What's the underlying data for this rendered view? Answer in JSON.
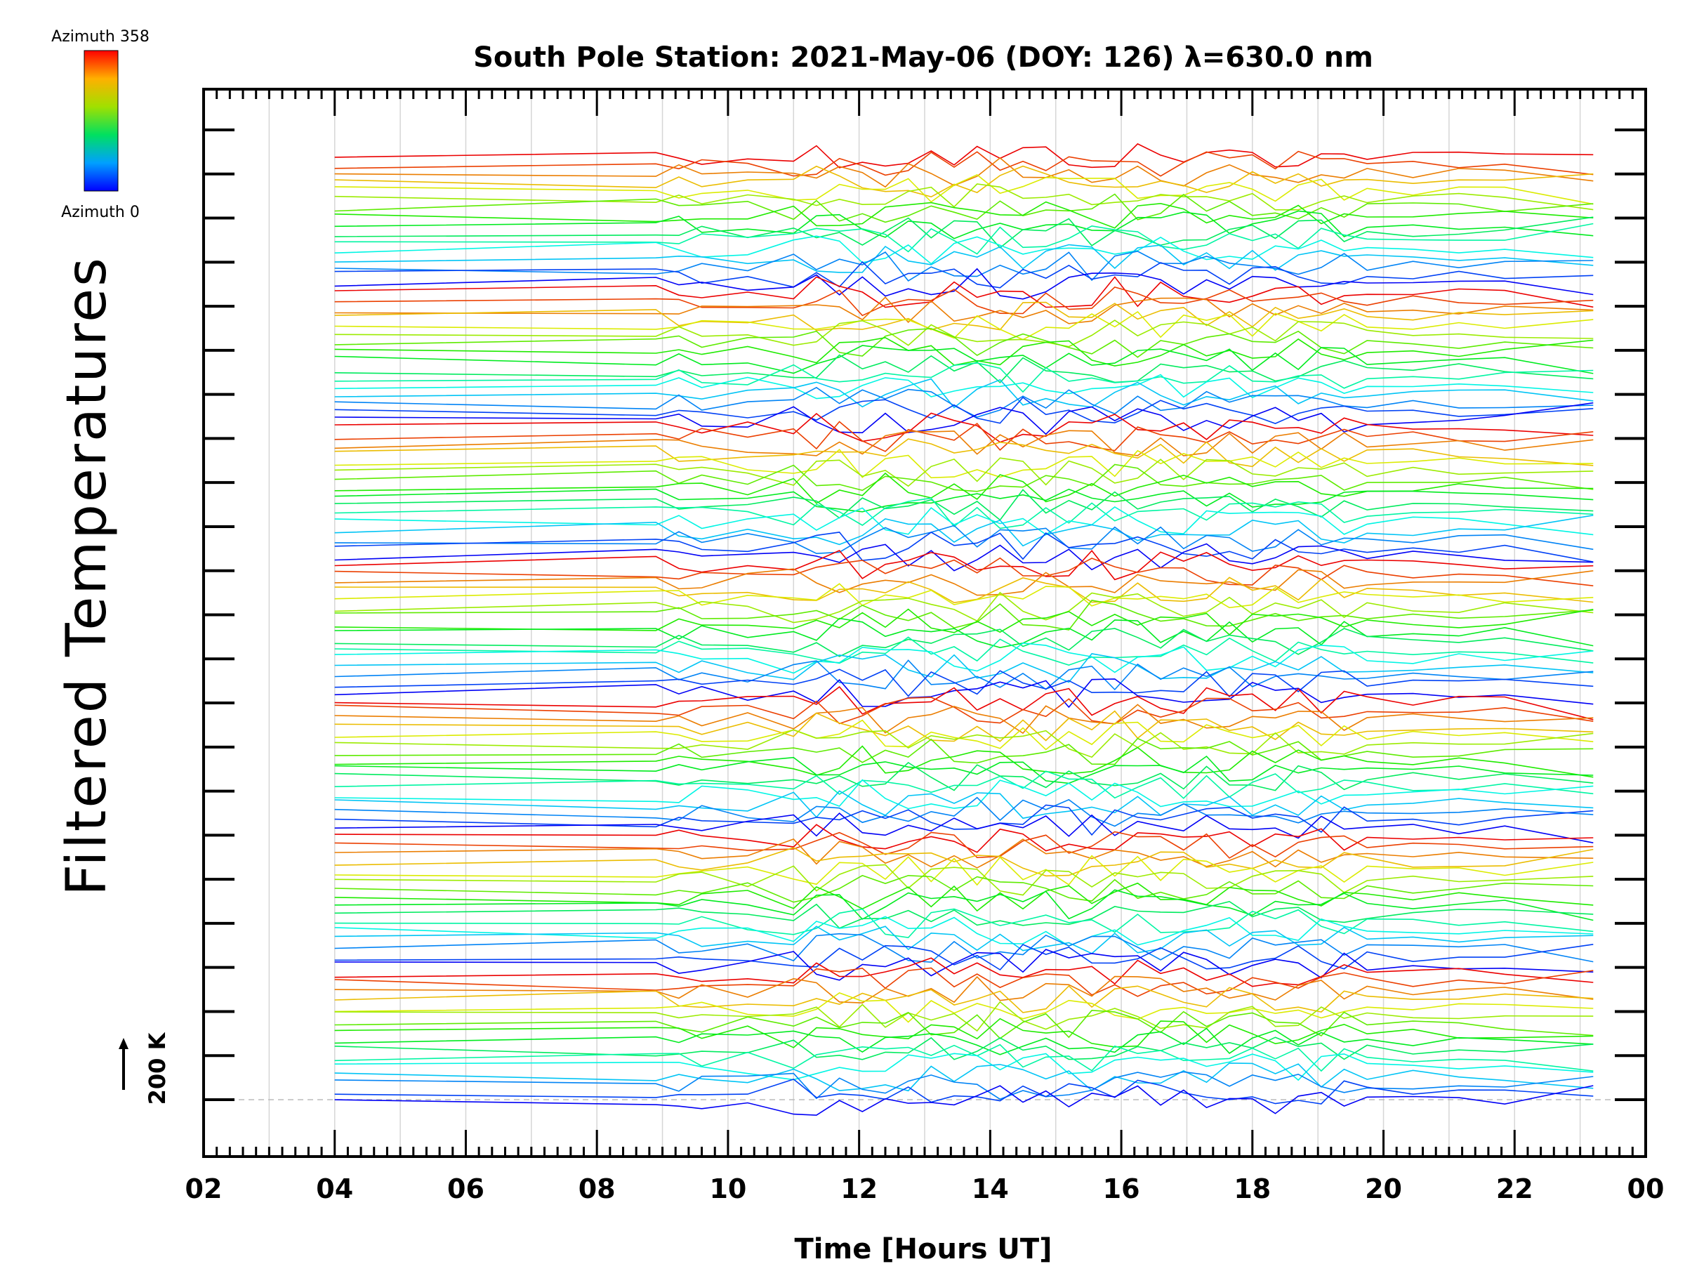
{
  "chart_data": {
    "type": "line",
    "title": "South Pole Station: 2021-May-06 (DOY: 126) λ=630.0 nm",
    "xlabel": "Time [Hours UT]",
    "ylabel": "Filtered Temperatures",
    "xlim": [
      2,
      24
    ],
    "x_tick_labels": [
      "02",
      "04",
      "06",
      "08",
      "10",
      "12",
      "14",
      "16",
      "18",
      "20",
      "22",
      "00"
    ],
    "grid": "vertical hourly lines",
    "scale_bar_label": "200 K",
    "colorbar": {
      "top_label": "Azimuth 358",
      "bottom_label": "Azimuth 0",
      "min": 0,
      "max": 358,
      "colormap": "rainbow"
    },
    "groups": 7,
    "series_per_group": 16,
    "series_description": "Offset-stacked filtered temperature traces, one per azimuth look direction, colour-coded by azimuth (0-358 deg)",
    "sample_times": [
      4.0,
      8.9,
      9.25,
      9.6,
      10.3,
      11.0,
      11.35,
      11.7,
      12.05,
      12.4,
      12.75,
      13.1,
      13.45,
      13.8,
      14.15,
      14.5,
      14.85,
      15.2,
      15.55,
      15.9,
      16.25,
      16.6,
      16.95,
      17.3,
      17.65,
      18.0,
      18.35,
      18.7,
      19.05,
      19.4,
      19.75,
      20.45,
      21.15,
      21.85,
      23.2
    ]
  }
}
